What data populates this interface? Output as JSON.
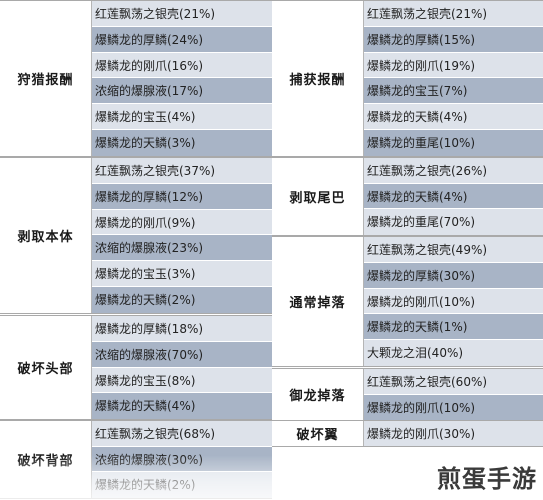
{
  "left": [
    {
      "label": "狩猎报酬",
      "rows": [
        "红莲飘荡之银壳(21%)",
        "爆鳞龙的厚鳞(24%)",
        "爆鳞龙的刚爪(16%)",
        "浓缩的爆腺液(17%)",
        "爆鳞龙的宝玉(4%)",
        "爆鳞龙的天鳞(3%)"
      ]
    },
    {
      "label": "剥取本体",
      "rows": [
        "红莲飘荡之银壳(37%)",
        "爆鳞龙的厚鳞(12%)",
        "爆鳞龙的刚爪(9%)",
        "浓缩的爆腺液(23%)",
        "爆鳞龙的宝玉(3%)",
        "爆鳞龙的天鳞(2%)"
      ]
    },
    {
      "label": "破坏头部",
      "rows": [
        "爆鳞龙的厚鳞(18%)",
        "浓缩的爆腺液(70%)",
        "爆鳞龙的宝玉(8%)",
        "爆鳞龙的天鳞(4%)"
      ]
    },
    {
      "label": "破坏背部",
      "rows": [
        "红莲飘荡之银壳(68%)",
        "浓缩的爆腺液(30%)",
        "爆鳞龙的天鳞(2%)"
      ]
    }
  ],
  "right": [
    {
      "label": "捕获报酬",
      "rows": [
        "红莲飘荡之银壳(21%)",
        "爆鳞龙的厚鳞(15%)",
        "爆鳞龙的刚爪(19%)",
        "爆鳞龙的宝玉(7%)",
        "爆鳞龙的天鳞(4%)",
        "爆鳞龙的重尾(10%)"
      ]
    },
    {
      "label": "剥取尾巴",
      "rows": [
        "红莲飘荡之银壳(26%)",
        "爆鳞龙的天鳞(4%)",
        "爆鳞龙的重尾(70%)"
      ]
    },
    {
      "label": "通常掉落",
      "rows": [
        "红莲飘荡之银壳(49%)",
        "爆鳞龙的厚鳞(30%)",
        "爆鳞龙的刚爪(10%)",
        "爆鳞龙的天鳞(1%)",
        "大颗龙之泪(40%)"
      ]
    },
    {
      "label": "御龙掉落",
      "rows": [
        "红莲飘荡之银壳(60%)",
        "爆鳞龙的刚爪(10%)"
      ]
    },
    {
      "label": "破坏翼",
      "rows": [
        "爆鳞龙的刚爪(30%)"
      ]
    }
  ],
  "watermark": "煎蛋手游"
}
